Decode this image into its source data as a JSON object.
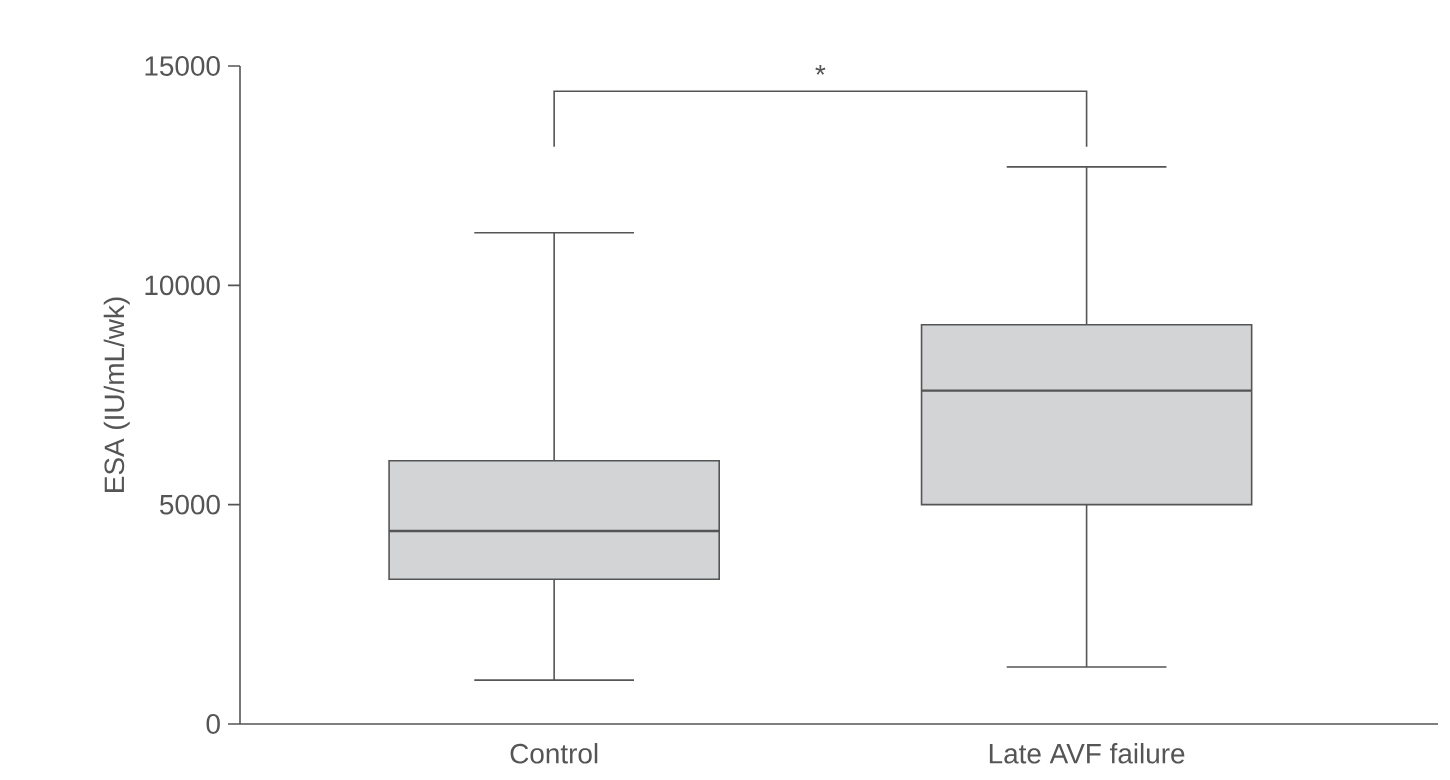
{
  "chart_data": {
    "type": "box",
    "ylabel": "ESA (IU/mL/wk)",
    "categories": [
      "Control",
      "Late AVF failure"
    ],
    "boxes": [
      {
        "low": 1000,
        "q1": 3300,
        "median": 4400,
        "q3": 6000,
        "high": 11200
      },
      {
        "low": 1300,
        "q1": 5000,
        "median": 7600,
        "q3": 9100,
        "high": 12700
      }
    ],
    "color": "#d3d4d6",
    "ylim": [
      0,
      15000
    ],
    "yticks": [
      0,
      5000,
      10000,
      15000
    ],
    "annotations": [
      "*"
    ]
  }
}
